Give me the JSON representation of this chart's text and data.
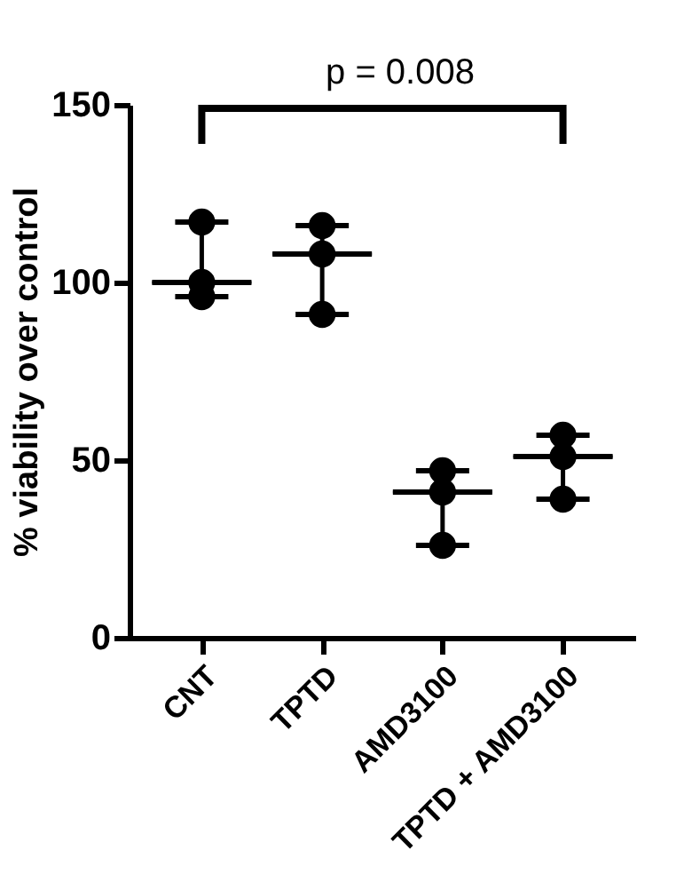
{
  "chart_data": {
    "type": "scatter",
    "ylabel": "% viability over control",
    "categories": [
      "CNT",
      "TPTD",
      "AMD3100",
      "TPTD + AMD3100"
    ],
    "ylim": [
      0,
      150
    ],
    "yticks": [
      0,
      50,
      100,
      150
    ],
    "grid": false,
    "annotations": [
      "p = 0.008"
    ],
    "series": [
      {
        "type": "box",
        "color": "#000000",
        "boxes": [
          {
            "low": 96,
            "q1": 100,
            "median": 100,
            "q3": 100,
            "high": 117
          },
          {
            "low": 91,
            "q1": 108,
            "median": 108,
            "q3": 108,
            "high": 116
          },
          {
            "low": 26,
            "q1": 41,
            "median": 41,
            "q3": 41,
            "high": 47
          },
          {
            "low": 39,
            "q1": 51,
            "median": 51,
            "q3": 51,
            "high": 57
          }
        ]
      },
      {
        "color": "#000000",
        "marker": "circle",
        "x": [
          "CNT",
          "CNT",
          "CNT",
          "TPTD",
          "TPTD",
          "TPTD",
          "AMD3100",
          "AMD3100",
          "AMD3100",
          "TPTD + AMD3100",
          "TPTD + AMD3100",
          "TPTD + AMD3100"
        ],
        "values": [
          117,
          96,
          100,
          116,
          108,
          91,
          47,
          41,
          26,
          57,
          51,
          39
        ]
      }
    ]
  }
}
